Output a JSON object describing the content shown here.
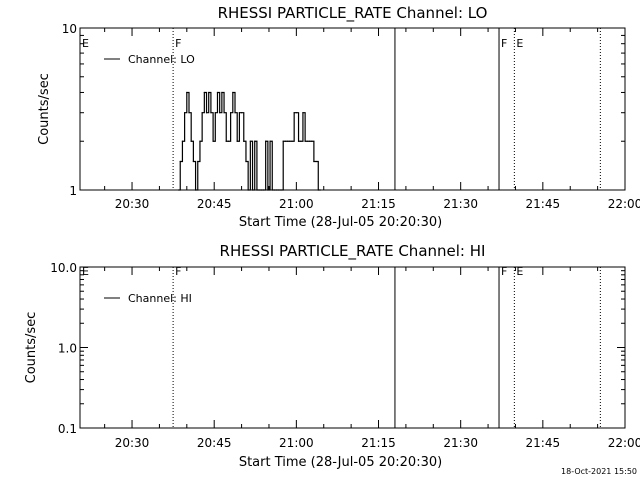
{
  "footer": {
    "timestamp": "18-Oct-2021 15:50"
  },
  "chart_data": [
    {
      "type": "line",
      "title": "RHESSI PARTICLE_RATE Channel: LO",
      "xlabel": "Start Time (28-Jul-05 20:20:30)",
      "ylabel": "Counts/sec",
      "ylog": true,
      "ylim": [
        1,
        10
      ],
      "ytick_values": [
        1,
        10
      ],
      "ytick_labels": [
        "1",
        "10"
      ],
      "xlim_minutes": [
        0,
        99.5
      ],
      "xtick_minutes": [
        9.5,
        24.5,
        39.5,
        54.5,
        69.5,
        84.5,
        99.5
      ],
      "xtick_labels": [
        "20:30",
        "20:45",
        "21:00",
        "21:15",
        "21:30",
        "21:45",
        "22:00"
      ],
      "legend": {
        "placement": "top-left",
        "entries": [
          "Channel: LO"
        ]
      },
      "markers": [
        {
          "minute": 0,
          "label": "E",
          "style": "none"
        },
        {
          "minute": 17,
          "label": "F",
          "style": "dotted"
        },
        {
          "minute": 57.5,
          "label": "",
          "style": "solid"
        },
        {
          "minute": 76.5,
          "label": "F",
          "style": "solid"
        },
        {
          "minute": 79.3,
          "label": "E",
          "style": "dotted"
        },
        {
          "minute": 95,
          "label": "",
          "style": "dotted"
        }
      ],
      "series": [
        {
          "name": "Channel: LO",
          "x_minutes": [
            18,
            18.3,
            18.7,
            19.1,
            19.5,
            19.9,
            20.3,
            20.7,
            21.1,
            21.5,
            21.9,
            22.3,
            22.7,
            23.1,
            23.5,
            23.9,
            24.3,
            24.7,
            25.1,
            25.5,
            25.9,
            26.3,
            26.7,
            27.1,
            27.5,
            27.9,
            28.3,
            28.7,
            29.1,
            29.5,
            29.9,
            30.3,
            30.7,
            31.1,
            31.5,
            31.9,
            32.3,
            32.7,
            33.1,
            33.5,
            33.9,
            34.3,
            34.7,
            35.1,
            35.5,
            35.9,
            36.3,
            36.7,
            37.1,
            37.5,
            37.9,
            38.3,
            38.7,
            39.1,
            39.5,
            39.9,
            40.3,
            40.7,
            41.1,
            41.5,
            41.9,
            42.3,
            42.7,
            43.1,
            43.5,
            43.9
          ],
          "values": [
            1,
            1.5,
            2,
            3,
            4,
            3,
            2,
            1.5,
            1,
            1.5,
            2,
            3,
            4,
            3,
            4,
            3,
            2,
            3,
            4,
            3,
            4,
            3,
            2,
            2,
            3,
            4,
            3,
            2,
            3,
            3,
            2,
            1.5,
            1,
            2,
            1,
            2,
            1,
            1,
            1,
            1,
            2,
            1,
            2,
            1,
            1,
            1,
            1,
            1,
            2,
            2,
            2,
            2,
            2,
            3,
            3,
            2,
            2,
            3,
            2,
            2,
            2,
            2,
            1.5,
            1.5,
            1,
            1
          ]
        }
      ]
    },
    {
      "type": "line",
      "title": "RHESSI PARTICLE_RATE Channel: HI",
      "xlabel": "Start Time (28-Jul-05 20:20:30)",
      "ylabel": "Counts/sec",
      "ylog": true,
      "ylim": [
        0.1,
        10
      ],
      "ytick_values": [
        0.1,
        1,
        10
      ],
      "ytick_labels": [
        "0.1",
        "1.0",
        "10.0"
      ],
      "xlim_minutes": [
        0,
        99.5
      ],
      "xtick_minutes": [
        9.5,
        24.5,
        39.5,
        54.5,
        69.5,
        84.5,
        99.5
      ],
      "xtick_labels": [
        "20:30",
        "20:45",
        "21:00",
        "21:15",
        "21:30",
        "21:45",
        "22:00"
      ],
      "legend": {
        "placement": "top-left",
        "entries": [
          "Channel: HI"
        ]
      },
      "markers": [
        {
          "minute": 0,
          "label": "E",
          "style": "none"
        },
        {
          "minute": 17,
          "label": "F",
          "style": "dotted"
        },
        {
          "minute": 57.5,
          "label": "",
          "style": "solid"
        },
        {
          "minute": 76.5,
          "label": "F",
          "style": "solid"
        },
        {
          "minute": 79.3,
          "label": "E",
          "style": "dotted"
        },
        {
          "minute": 95,
          "label": "",
          "style": "dotted"
        }
      ],
      "series": [
        {
          "name": "Channel: HI",
          "x_minutes": [],
          "values": []
        }
      ]
    }
  ]
}
